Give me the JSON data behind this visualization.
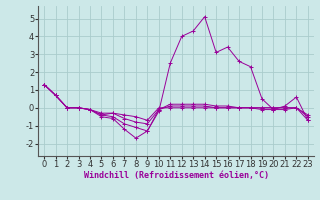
{
  "background_color": "#cce8e8",
  "grid_color": "#aacccc",
  "line_color": "#990099",
  "marker": "+",
  "xlim": [
    -0.5,
    23.5
  ],
  "ylim": [
    -2.7,
    5.7
  ],
  "yticks": [
    -2,
    -1,
    0,
    1,
    2,
    3,
    4,
    5
  ],
  "xticks": [
    0,
    1,
    2,
    3,
    4,
    5,
    6,
    7,
    8,
    9,
    10,
    11,
    12,
    13,
    14,
    15,
    16,
    17,
    18,
    19,
    20,
    21,
    22,
    23
  ],
  "xlabel": "Windchill (Refroidissement éolien,°C)",
  "xlabel_fontsize": 6.0,
  "tick_fontsize": 6.0,
  "series": [
    [
      1.3,
      0.7,
      0.0,
      0.0,
      -0.1,
      -0.5,
      -0.6,
      -1.2,
      -1.7,
      -1.3,
      -0.2,
      2.5,
      4.0,
      4.3,
      5.1,
      3.1,
      3.4,
      2.6,
      2.3,
      0.5,
      -0.1,
      0.1,
      0.6,
      -0.7
    ],
    [
      1.3,
      0.7,
      0.0,
      0.0,
      -0.1,
      -0.4,
      -0.5,
      -0.9,
      -1.1,
      -1.3,
      -0.1,
      0.2,
      0.2,
      0.2,
      0.2,
      0.1,
      0.1,
      0.0,
      0.0,
      -0.1,
      -0.1,
      -0.1,
      0.0,
      -0.7
    ],
    [
      1.3,
      0.7,
      0.0,
      0.0,
      -0.1,
      -0.4,
      -0.3,
      -0.6,
      -0.8,
      -0.9,
      -0.1,
      0.1,
      0.1,
      0.1,
      0.1,
      0.0,
      0.0,
      0.0,
      0.0,
      0.0,
      0.0,
      0.0,
      0.0,
      -0.5
    ],
    [
      1.3,
      0.7,
      0.0,
      0.0,
      -0.1,
      -0.3,
      -0.3,
      -0.4,
      -0.5,
      -0.7,
      0.0,
      0.0,
      0.0,
      0.0,
      0.0,
      0.0,
      0.0,
      0.0,
      0.0,
      0.0,
      0.0,
      0.0,
      0.0,
      -0.4
    ]
  ]
}
